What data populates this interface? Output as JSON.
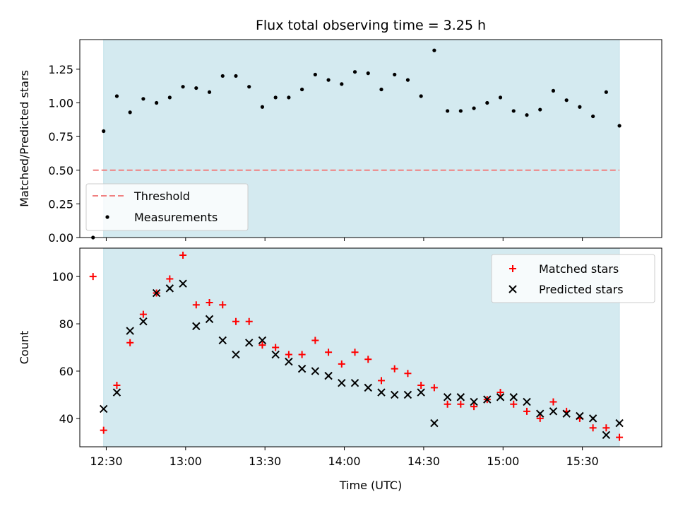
{
  "chart_data": {
    "title": "Flux total observing time = 3.25 h",
    "xlabel": "Time (UTC)",
    "x_ticks": [
      "12:30",
      "13:00",
      "13:30",
      "14:00",
      "14:30",
      "15:00",
      "15:30"
    ],
    "x_range": [
      "12:20",
      "16:00"
    ],
    "shaded_span": [
      "12:29",
      "15:44"
    ],
    "shade_color": "#d4eaf0",
    "panels": [
      {
        "type": "scatter",
        "ylabel": "Matched/Predicted stars",
        "ylim": [
          0,
          1.47
        ],
        "y_ticks": [
          "0.00",
          "0.25",
          "0.50",
          "0.75",
          "1.00",
          "1.25"
        ],
        "threshold": {
          "value": 0.5,
          "from": "12:25",
          "to": "15:44",
          "color": "#f08080"
        },
        "legend": {
          "position": "lower-left",
          "entries": [
            "Threshold",
            "Measurements"
          ]
        },
        "series": [
          {
            "name": "Measurements",
            "color": "#000000",
            "x": [
              "12:25",
              "12:29",
              "12:34",
              "12:39",
              "12:44",
              "12:49",
              "12:54",
              "12:59",
              "13:04",
              "13:09",
              "13:14",
              "13:19",
              "13:24",
              "13:29",
              "13:34",
              "13:39",
              "13:44",
              "13:49",
              "13:54",
              "13:59",
              "14:04",
              "14:09",
              "14:14",
              "14:19",
              "14:24",
              "14:29",
              "14:34",
              "14:39",
              "14:44",
              "14:49",
              "14:54",
              "14:59",
              "15:04",
              "15:09",
              "15:14",
              "15:19",
              "15:24",
              "15:29",
              "15:34",
              "15:39",
              "15:44"
            ],
            "values": [
              0.0,
              0.79,
              1.05,
              0.93,
              1.03,
              1.0,
              1.04,
              1.12,
              1.11,
              1.08,
              1.2,
              1.2,
              1.12,
              0.97,
              1.04,
              1.04,
              1.1,
              1.21,
              1.17,
              1.14,
              1.23,
              1.22,
              1.1,
              1.21,
              1.17,
              1.05,
              1.39,
              0.94,
              0.94,
              0.96,
              1.0,
              1.04,
              0.94,
              0.91,
              0.95,
              1.09,
              1.02,
              0.97,
              0.9,
              1.08,
              0.83
            ]
          }
        ]
      },
      {
        "type": "scatter",
        "ylabel": "Count",
        "ylim": [
          28,
          112
        ],
        "y_ticks": [
          "40",
          "60",
          "80",
          "100"
        ],
        "legend": {
          "position": "upper-right",
          "entries": [
            "Matched stars",
            "Predicted stars"
          ]
        },
        "series": [
          {
            "name": "Matched stars",
            "marker": "+",
            "color": "#ff0000",
            "x": [
              "12:25",
              "12:29",
              "12:34",
              "12:39",
              "12:44",
              "12:49",
              "12:54",
              "12:59",
              "13:04",
              "13:09",
              "13:14",
              "13:19",
              "13:24",
              "13:29",
              "13:34",
              "13:39",
              "13:44",
              "13:49",
              "13:54",
              "13:59",
              "14:04",
              "14:09",
              "14:14",
              "14:19",
              "14:24",
              "14:29",
              "14:34",
              "14:39",
              "14:44",
              "14:49",
              "14:54",
              "14:59",
              "15:04",
              "15:09",
              "15:14",
              "15:19",
              "15:24",
              "15:29",
              "15:34",
              "15:39",
              "15:44"
            ],
            "values": [
              100,
              35,
              54,
              72,
              84,
              93,
              99,
              109,
              88,
              89,
              88,
              81,
              81,
              71,
              70,
              67,
              67,
              73,
              68,
              63,
              68,
              65,
              56,
              61,
              59,
              54,
              53,
              46,
              46,
              45,
              48,
              51,
              46,
              43,
              40,
              47,
              43,
              40,
              36,
              36,
              32
            ]
          },
          {
            "name": "Predicted stars",
            "marker": "x",
            "color": "#000000",
            "x": [
              "12:29",
              "12:34",
              "12:39",
              "12:44",
              "12:49",
              "12:54",
              "12:59",
              "13:04",
              "13:09",
              "13:14",
              "13:19",
              "13:24",
              "13:29",
              "13:34",
              "13:39",
              "13:44",
              "13:49",
              "13:54",
              "13:59",
              "14:04",
              "14:09",
              "14:14",
              "14:19",
              "14:24",
              "14:29",
              "14:34",
              "14:39",
              "14:44",
              "14:49",
              "14:54",
              "14:59",
              "15:04",
              "15:09",
              "15:14",
              "15:19",
              "15:24",
              "15:29",
              "15:34",
              "15:39",
              "15:44"
            ],
            "values": [
              44,
              51,
              77,
              81,
              93,
              95,
              97,
              79,
              82,
              73,
              67,
              72,
              73,
              67,
              64,
              61,
              60,
              58,
              55,
              55,
              53,
              51,
              50,
              50,
              51,
              38,
              49,
              49,
              47,
              48,
              49,
              49,
              47,
              42,
              43,
              42,
              41,
              40,
              33,
              38
            ]
          }
        ]
      }
    ]
  }
}
